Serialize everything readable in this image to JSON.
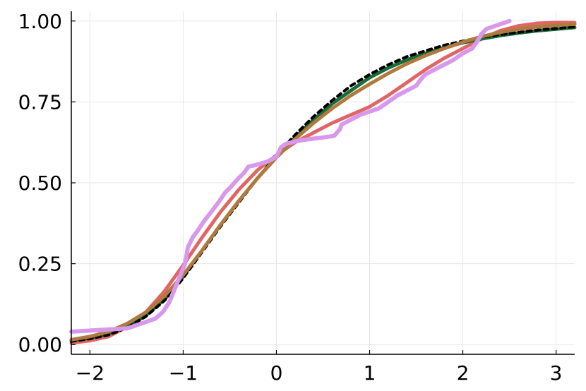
{
  "chart_data": {
    "type": "line",
    "title": "",
    "xlabel": "",
    "ylabel": "",
    "xlim": [
      -2.2,
      3.2
    ],
    "ylim": [
      -0.03,
      1.03
    ],
    "xticks": [
      -2,
      -1,
      0,
      1,
      2,
      3
    ],
    "xtick_labels": [
      "−2",
      "−1",
      "0",
      "1",
      "2",
      "3"
    ],
    "yticks": [
      0.0,
      0.25,
      0.5,
      0.75,
      1.0
    ],
    "ytick_labels": [
      "0.00",
      "0.25",
      "0.50",
      "0.75",
      "1.00"
    ],
    "grid": true,
    "legend": "none",
    "series": [
      {
        "color": "#e06666",
        "width": 5,
        "dash": "",
        "x": [
          -2.2,
          -2.0,
          -1.8,
          -1.6,
          -1.4,
          -1.2,
          -1.0,
          -0.8,
          -0.6,
          -0.4,
          -0.2,
          0.0,
          0.2,
          0.4,
          0.6,
          0.8,
          1.0,
          1.2,
          1.4,
          1.6,
          1.8,
          2.0,
          2.2,
          2.4,
          2.6,
          2.8,
          3.0,
          3.2
        ],
        "y": [
          0.005,
          0.012,
          0.025,
          0.055,
          0.1,
          0.165,
          0.245,
          0.33,
          0.41,
          0.48,
          0.54,
          0.585,
          0.625,
          0.655,
          0.685,
          0.71,
          0.735,
          0.77,
          0.81,
          0.85,
          0.885,
          0.915,
          0.945,
          0.97,
          0.985,
          0.993,
          0.995,
          0.995
        ]
      },
      {
        "color": "#1a6b3a",
        "width": 5,
        "dash": "",
        "x": [
          -2.2,
          -2.0,
          -1.8,
          -1.6,
          -1.4,
          -1.2,
          -1.0,
          -0.8,
          -0.6,
          -0.4,
          -0.2,
          0.0,
          0.2,
          0.4,
          0.6,
          0.8,
          1.0,
          1.2,
          1.4,
          1.6,
          1.8,
          2.0,
          2.2,
          2.4,
          2.6,
          2.8,
          3.0,
          3.2
        ],
        "y": [
          0.012,
          0.02,
          0.033,
          0.055,
          0.09,
          0.14,
          0.21,
          0.29,
          0.37,
          0.445,
          0.515,
          0.58,
          0.64,
          0.695,
          0.745,
          0.785,
          0.825,
          0.855,
          0.88,
          0.9,
          0.918,
          0.933,
          0.945,
          0.955,
          0.963,
          0.97,
          0.975,
          0.98
        ]
      },
      {
        "color": "#000000",
        "width": 4,
        "dash": "6,6",
        "x": [
          -2.2,
          -2.0,
          -1.8,
          -1.6,
          -1.4,
          -1.2,
          -1.0,
          -0.8,
          -0.6,
          -0.4,
          -0.2,
          0.0,
          0.2,
          0.4,
          0.6,
          0.8,
          1.0,
          1.2,
          1.4,
          1.6,
          1.8,
          2.0,
          2.2,
          2.4,
          2.6,
          2.8,
          3.0,
          3.2
        ],
        "y": [
          0.01,
          0.018,
          0.03,
          0.052,
          0.087,
          0.136,
          0.205,
          0.285,
          0.365,
          0.44,
          0.515,
          0.585,
          0.648,
          0.705,
          0.755,
          0.8,
          0.835,
          0.865,
          0.89,
          0.908,
          0.925,
          0.938,
          0.95,
          0.958,
          0.965,
          0.972,
          0.977,
          0.982
        ]
      },
      {
        "color": "#b07a3e",
        "width": 5,
        "dash": "",
        "x": [
          -2.2,
          -2.0,
          -1.8,
          -1.6,
          -1.4,
          -1.2,
          -1.0,
          -0.8,
          -0.6,
          -0.4,
          -0.2,
          0.0,
          0.2,
          0.4,
          0.6,
          0.8,
          1.0,
          1.2,
          1.4,
          1.6,
          1.8,
          2.0,
          2.2,
          2.4,
          2.6,
          2.8,
          3.0,
          3.2
        ],
        "y": [
          0.015,
          0.025,
          0.04,
          0.065,
          0.1,
          0.15,
          0.215,
          0.29,
          0.37,
          0.445,
          0.515,
          0.578,
          0.635,
          0.685,
          0.73,
          0.77,
          0.805,
          0.838,
          0.868,
          0.893,
          0.915,
          0.935,
          0.952,
          0.965,
          0.975,
          0.982,
          0.987,
          0.99
        ]
      },
      {
        "color": "#d899ec",
        "width": 6,
        "dash": "",
        "x": [
          -2.2,
          -1.6,
          -1.45,
          -1.3,
          -1.22,
          -1.15,
          -1.05,
          -0.98,
          -0.95,
          -0.9,
          -0.85,
          -0.78,
          -0.7,
          -0.62,
          -0.55,
          -0.48,
          -0.42,
          -0.35,
          -0.3,
          -0.22,
          -0.1,
          0.0,
          0.05,
          0.1,
          0.2,
          0.35,
          0.5,
          0.62,
          0.68,
          0.7,
          0.8,
          0.9,
          1.0,
          1.1,
          1.2,
          1.3,
          1.4,
          1.5,
          1.55,
          1.6,
          1.7,
          1.8,
          1.9,
          2.0,
          2.1,
          2.15,
          2.2,
          2.25,
          2.35,
          2.5
        ],
        "y": [
          0.04,
          0.05,
          0.065,
          0.08,
          0.1,
          0.13,
          0.2,
          0.25,
          0.3,
          0.33,
          0.35,
          0.38,
          0.41,
          0.44,
          0.47,
          0.49,
          0.51,
          0.53,
          0.55,
          0.555,
          0.565,
          0.58,
          0.61,
          0.62,
          0.628,
          0.635,
          0.64,
          0.645,
          0.665,
          0.68,
          0.695,
          0.71,
          0.72,
          0.73,
          0.75,
          0.77,
          0.785,
          0.8,
          0.82,
          0.835,
          0.85,
          0.865,
          0.88,
          0.9,
          0.915,
          0.935,
          0.96,
          0.975,
          0.985,
          1.0
        ]
      }
    ]
  }
}
